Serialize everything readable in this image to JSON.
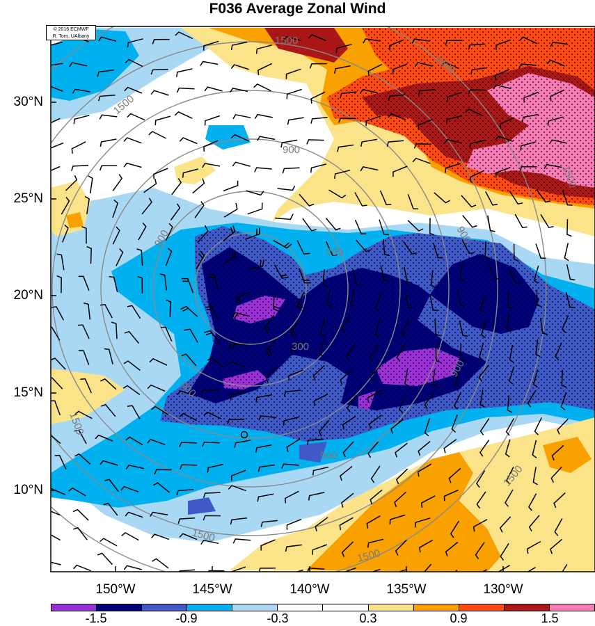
{
  "title": "F036 Average Zonal Wind",
  "credit": {
    "line1": "© 2016 ECMWF",
    "line2": "R. Torn, UAlbany"
  },
  "lat_labels": [
    "30°N",
    "25°N",
    "20°N",
    "15°N",
    "10°N"
  ],
  "lon_labels": [
    "150°W",
    "145°W",
    "140°W",
    "135°W",
    "130°W"
  ],
  "contour_labels": [
    "300",
    "900",
    "1500"
  ],
  "colorbar": {
    "colors": [
      "#9b30d8",
      "#00007a",
      "#3f59c9",
      "#00b0ef",
      "#a9d8f5",
      "#ffffff",
      "#ffffff",
      "#fbe38a",
      "#f8a100",
      "#ff4a10",
      "#ab1616",
      "#f77bb5"
    ],
    "tick_labels": [
      "-1.5",
      "-0.9",
      "-0.3",
      "0.3",
      "0.9",
      "1.5"
    ]
  }
}
